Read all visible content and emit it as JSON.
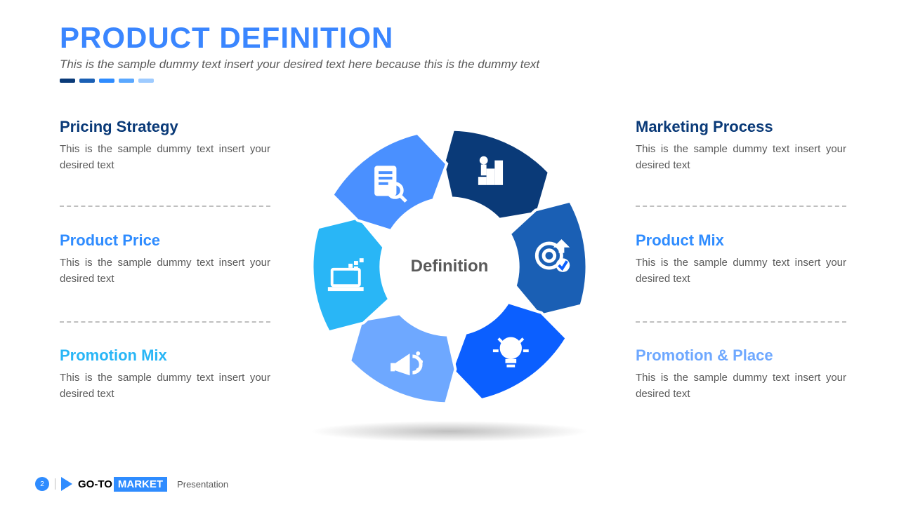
{
  "header": {
    "title": "PRODUCT DEFINITION",
    "title_color": "#3a86ff",
    "subtitle": "This is the sample dummy text insert your desired text here because this is the dummy text",
    "dash_colors": [
      "#0a3a78",
      "#1a5fb4",
      "#2f8cff",
      "#5aa8ff",
      "#9ecbff"
    ]
  },
  "center_label": "Definition",
  "segments": [
    {
      "idx": 0,
      "dir": "up",
      "color": "#0a3a78",
      "icon": "stairs-up-icon",
      "block_side": "left",
      "heading": "Pricing Strategy",
      "heading_color": "#0a3a78",
      "desc": "This is the sample dummy text insert your desired text"
    },
    {
      "idx": 1,
      "dir": "up",
      "color": "#1a5fb4",
      "icon": "target-icon",
      "block_side": "right",
      "heading": "Marketing Process",
      "heading_color": "#0a3a78",
      "desc": "This is the sample dummy text insert your desired text"
    },
    {
      "idx": 2,
      "dir": "right",
      "color": "#0b5fff",
      "icon": "lightbulb-icon",
      "block_side": "right",
      "heading": "Product Mix",
      "heading_color": "#2f8cff",
      "desc": "This is the sample dummy text insert your desired text"
    },
    {
      "idx": 3,
      "dir": "down",
      "color": "#6ea8ff",
      "icon": "megaphone-icon",
      "block_side": "right",
      "heading": "Promotion & Place",
      "heading_color": "#6ea8ff",
      "desc": "This is the sample dummy text insert your desired text"
    },
    {
      "idx": 4,
      "dir": "down",
      "color": "#29b6f6",
      "icon": "laptop-icon",
      "block_side": "left",
      "heading": "Promotion Mix",
      "heading_color": "#29b6f6",
      "desc": "This is the sample dummy text insert your desired text"
    },
    {
      "idx": 5,
      "dir": "left",
      "color": "#4a90ff",
      "icon": "doc-search-icon",
      "block_side": "left",
      "heading": "Product Price",
      "heading_color": "#2f8cff",
      "desc": "This is the sample dummy text insert your desired text"
    }
  ],
  "layout": {
    "left_heading_tops": [
      168,
      330,
      494
    ],
    "right_heading_tops": [
      168,
      330,
      494
    ],
    "left_divider_tops": [
      285,
      450
    ],
    "right_divider_tops": [
      285,
      450
    ]
  },
  "donut": {
    "outer_r": 100,
    "inner_r": 50,
    "gap_deg": 3,
    "tip_deg": 12,
    "icon_r": 76
  },
  "footer": {
    "page_number": "2",
    "brand_left": "GO-TO",
    "brand_box": "MARKET",
    "brand_label": "Presentation"
  }
}
